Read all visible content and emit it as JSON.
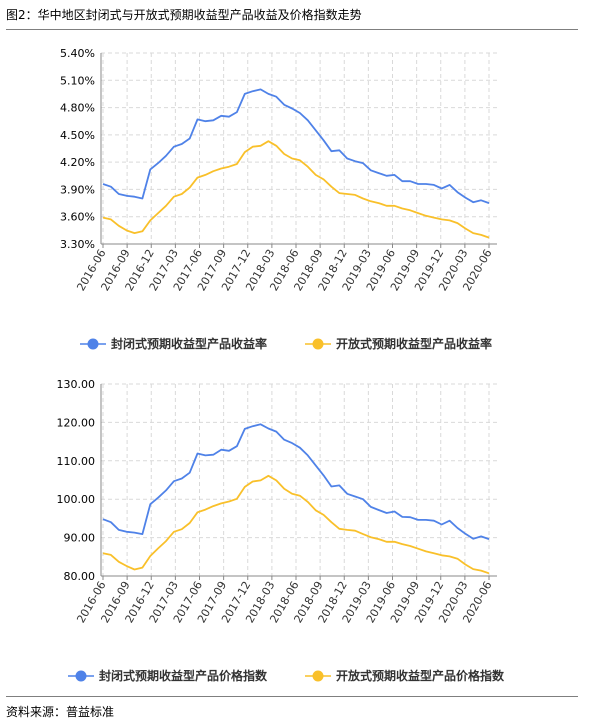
{
  "title": "图2：华中地区封闭式与开放式预期收益型产品收益及价格指数走势",
  "source": "资料来源：普益标准",
  "colors": {
    "blue": "#4f82e8",
    "yellow": "#f9c02a",
    "grid": "#d9d9d9",
    "axis": "#888888"
  },
  "chart_data": [
    {
      "type": "line",
      "ylim": [
        3.3,
        5.4
      ],
      "yticks": [
        "3.30%",
        "3.60%",
        "3.90%",
        "4.20%",
        "4.50%",
        "4.80%",
        "5.10%",
        "5.40%"
      ],
      "ytick_values": [
        3.3,
        3.6,
        3.9,
        4.2,
        4.5,
        4.8,
        5.1,
        5.4
      ],
      "x_tick_labels": [
        "2016-06",
        "2016-09",
        "2016-12",
        "2017-03",
        "2017-06",
        "2017-09",
        "2017-12",
        "2018-03",
        "2018-06",
        "2018-09",
        "2018-12",
        "2019-03",
        "2019-06",
        "2019-09",
        "2019-12",
        "2020-03",
        "2020-06"
      ],
      "grid": true,
      "legend_position": "bottom",
      "series": [
        {
          "name": "封闭式预期收益型产品收益率",
          "values": [
            3.96,
            3.93,
            3.85,
            3.83,
            3.82,
            3.8,
            4.12,
            4.19,
            4.27,
            4.37,
            4.4,
            4.46,
            4.67,
            4.65,
            4.66,
            4.71,
            4.7,
            4.75,
            4.95,
            4.98,
            5.0,
            4.95,
            4.92,
            4.83,
            4.79,
            4.74,
            4.66,
            4.55,
            4.44,
            4.32,
            4.33,
            4.24,
            4.21,
            4.19,
            4.11,
            4.08,
            4.05,
            4.06,
            3.99,
            3.99,
            3.96,
            3.96,
            3.95,
            3.91,
            3.95,
            3.87,
            3.81,
            3.76,
            3.78,
            3.75
          ]
        },
        {
          "name": "开放式预期收益型产品收益率",
          "values": [
            3.59,
            3.57,
            3.5,
            3.45,
            3.42,
            3.44,
            3.56,
            3.64,
            3.72,
            3.82,
            3.85,
            3.92,
            4.03,
            4.06,
            4.1,
            4.13,
            4.15,
            4.18,
            4.31,
            4.37,
            4.38,
            4.43,
            4.38,
            4.29,
            4.24,
            4.22,
            4.15,
            4.06,
            4.01,
            3.93,
            3.86,
            3.85,
            3.84,
            3.8,
            3.77,
            3.75,
            3.72,
            3.72,
            3.69,
            3.67,
            3.64,
            3.61,
            3.59,
            3.57,
            3.56,
            3.53,
            3.47,
            3.42,
            3.4,
            3.37
          ]
        }
      ]
    },
    {
      "type": "line",
      "ylim": [
        80,
        130
      ],
      "yticks": [
        "80.00",
        "90.00",
        "100.00",
        "110.00",
        "120.00",
        "130.00"
      ],
      "ytick_values": [
        80,
        90,
        100,
        110,
        120,
        130
      ],
      "x_tick_labels": [
        "2016-06",
        "2016-09",
        "2016-12",
        "2017-03",
        "2017-06",
        "2017-09",
        "2017-12",
        "2018-03",
        "2018-06",
        "2018-09",
        "2018-12",
        "2019-03",
        "2019-06",
        "2019-09",
        "2019-12",
        "2020-03",
        "2020-06"
      ],
      "grid": true,
      "legend_position": "bottom",
      "series": [
        {
          "name": "封闭式预期收益型产品价格指数",
          "values": [
            94.8,
            94.0,
            92.0,
            91.5,
            91.3,
            90.9,
            98.7,
            100.4,
            102.3,
            104.7,
            105.4,
            106.9,
            111.9,
            111.4,
            111.6,
            112.9,
            112.6,
            113.8,
            118.3,
            119.0,
            119.5,
            118.4,
            117.6,
            115.5,
            114.6,
            113.4,
            111.4,
            108.8,
            106.2,
            103.3,
            103.6,
            101.4,
            100.7,
            100.0,
            98.0,
            97.2,
            96.4,
            96.8,
            95.4,
            95.3,
            94.6,
            94.6,
            94.4,
            93.4,
            94.4,
            92.5,
            91.0,
            89.7,
            90.3,
            89.6
          ]
        },
        {
          "name": "开放式预期收益型产品价格指数",
          "values": [
            85.9,
            85.5,
            83.7,
            82.6,
            81.7,
            82.2,
            85.2,
            87.2,
            89.1,
            91.5,
            92.2,
            93.8,
            96.6,
            97.3,
            98.2,
            98.9,
            99.4,
            100.1,
            103.2,
            104.6,
            104.9,
            106.1,
            104.9,
            102.7,
            101.4,
            100.9,
            99.3,
            97.1,
            95.9,
            94.0,
            92.3,
            92.0,
            91.8,
            90.9,
            90.1,
            89.6,
            88.9,
            88.9,
            88.3,
            87.8,
            87.1,
            86.4,
            85.9,
            85.4,
            85.1,
            84.5,
            83.0,
            81.8,
            81.4,
            80.7
          ]
        }
      ]
    }
  ]
}
